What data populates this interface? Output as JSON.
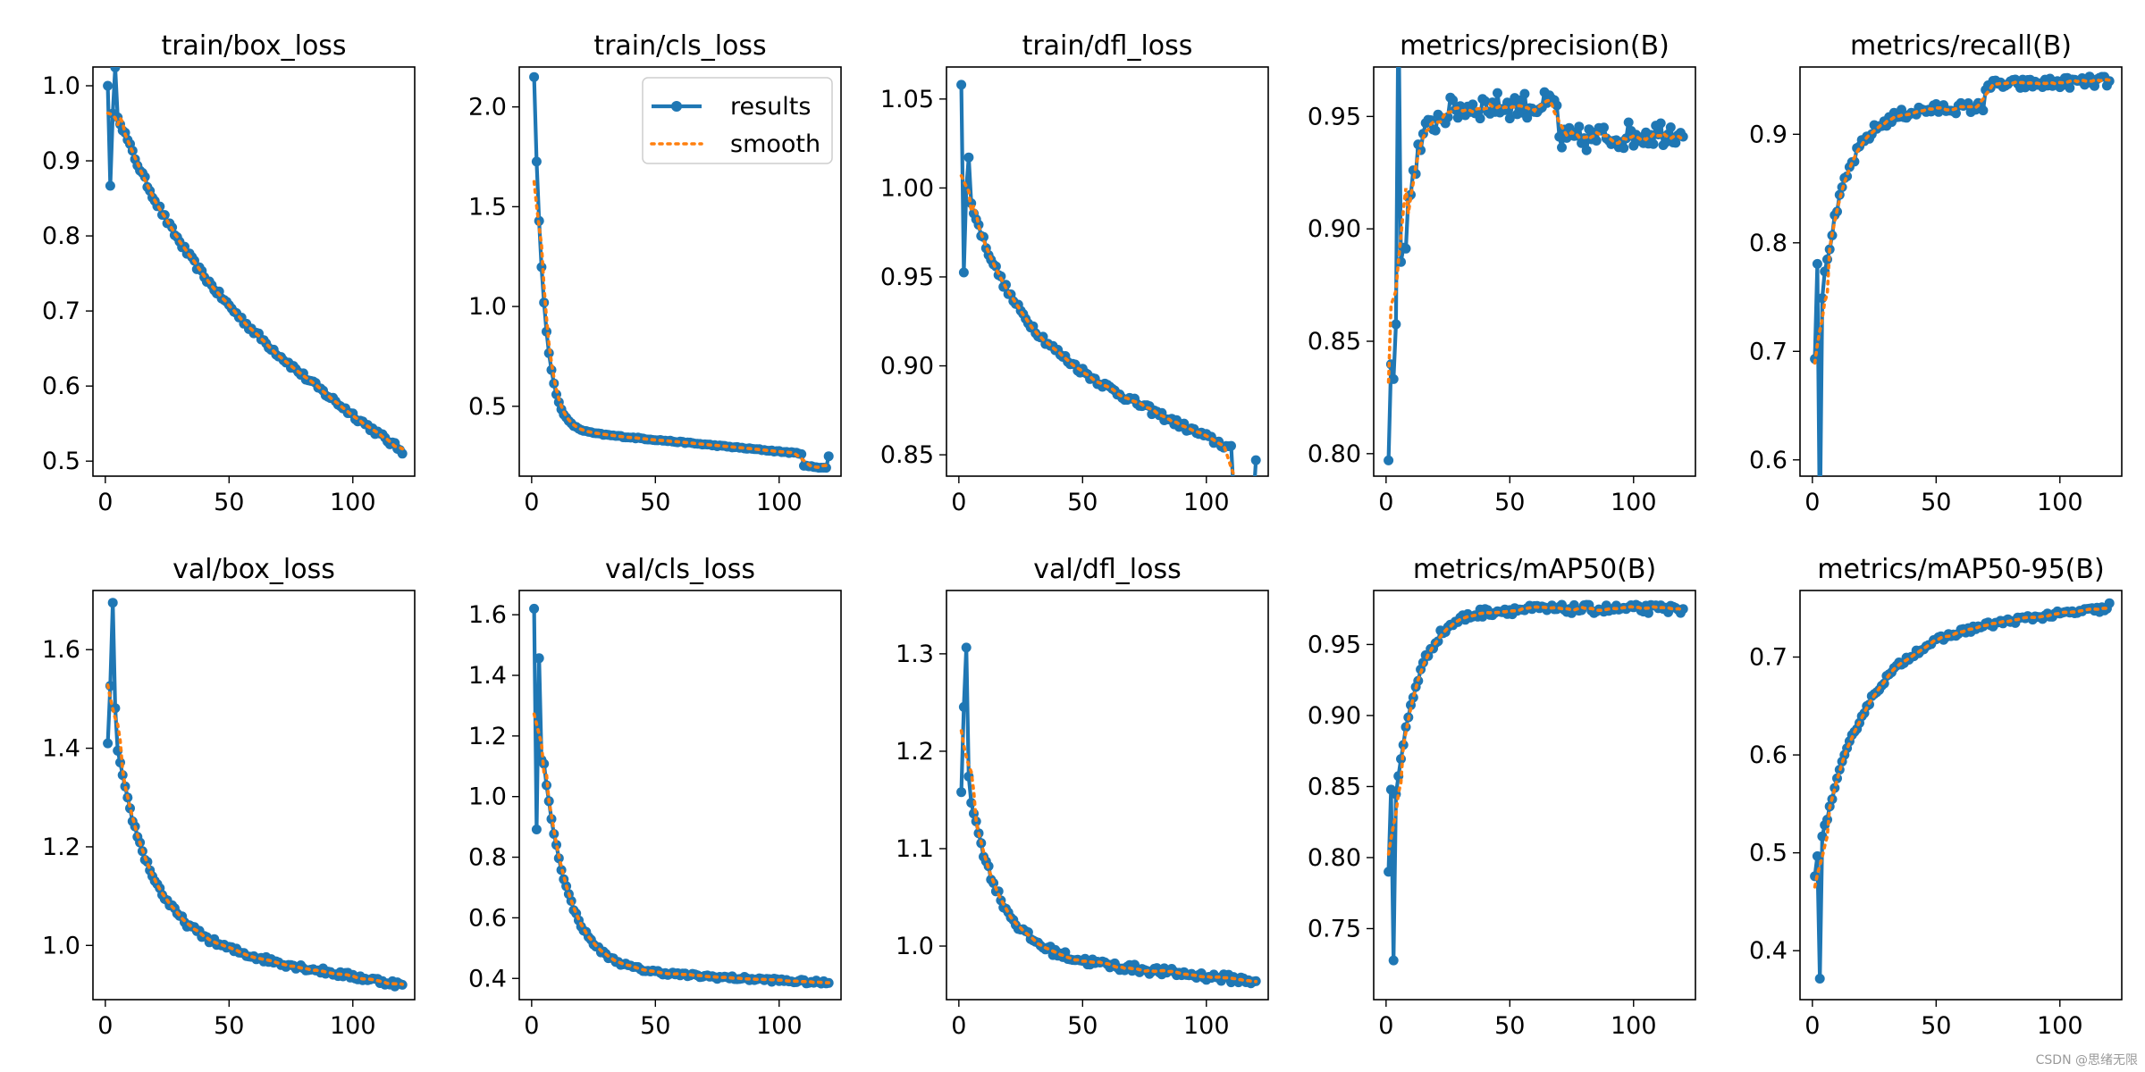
{
  "legend": {
    "results": "results",
    "smooth": "smooth",
    "panel": 1
  },
  "colors": {
    "results": "#1f77b4",
    "smooth": "#ff7f0e"
  },
  "watermark": "CSDN @思绪无限",
  "chart_data": [
    {
      "type": "line",
      "title": "train/box_loss",
      "xlim": [
        -5,
        125
      ],
      "ylim": [
        0.48,
        1.025
      ],
      "xticks": [
        0,
        50,
        100
      ],
      "yticks": [
        0.5,
        0.6,
        0.7,
        0.8,
        0.9,
        1.0
      ],
      "ytick_labels": [
        "0.5",
        "0.6",
        "0.7",
        "0.8",
        "0.9",
        "1.0"
      ],
      "series": [
        {
          "start": 1.0,
          "end": 0.51,
          "decay": 28,
          "amp": 0.22,
          "linear": 0.27,
          "spikes": [
            [
              2,
              -0.12
            ],
            [
              3,
              -0.02
            ],
            [
              4,
              0.05
            ]
          ],
          "noise": 0.004
        }
      ]
    },
    {
      "type": "line",
      "title": "train/cls_loss",
      "xlim": [
        -5,
        125
      ],
      "ylim": [
        0.15,
        2.2
      ],
      "xticks": [
        0,
        50,
        100
      ],
      "yticks": [
        0.5,
        1.0,
        1.5,
        2.0
      ],
      "ytick_labels": [
        "0.5",
        "1.0",
        "1.5",
        "2.0"
      ],
      "series": [
        {
          "start": 2.15,
          "end": 0.25,
          "decay": 4,
          "amp": 1.72,
          "linear": 0.14,
          "drop_at": 110,
          "drop": 0.06,
          "spikes": [],
          "noise": 0.003
        }
      ]
    },
    {
      "type": "line",
      "title": "train/dfl_loss",
      "xlim": [
        -5,
        125
      ],
      "ylim": [
        0.838,
        1.068
      ],
      "xticks": [
        0,
        50,
        100
      ],
      "yticks": [
        0.85,
        0.9,
        0.95,
        1.0,
        1.05
      ],
      "ytick_labels": [
        "0.85",
        "0.90",
        "0.95",
        "1.00",
        "1.05"
      ],
      "series": [
        {
          "start": 1.058,
          "end": 0.847,
          "decay": 18,
          "amp": 0.09,
          "linear": 0.075,
          "drop_at": 111,
          "drop": 0.025,
          "spikes": [
            [
              2,
              -0.055
            ],
            [
              4,
              0.02
            ]
          ],
          "noise": 0.002
        }
      ]
    },
    {
      "type": "line",
      "title": "metrics/precision(B)",
      "xlim": [
        -5,
        125
      ],
      "ylim": [
        0.79,
        0.972
      ],
      "xticks": [
        0,
        50,
        100
      ],
      "yticks": [
        0.8,
        0.85,
        0.9,
        0.95
      ],
      "ytick_labels": [
        "0.80",
        "0.85",
        "0.90",
        "0.95"
      ],
      "series": [
        {
          "start": 0.797,
          "end": 0.941,
          "rise": 6,
          "plateau": 0.955,
          "drop_at": 70,
          "drop_to": 0.939,
          "after_end": 0.944,
          "spikes": [
            [
              2,
              0.02
            ],
            [
              3,
              -0.01
            ],
            [
              5,
              0.13
            ],
            [
              8,
              -0.02
            ]
          ],
          "noise": 0.006
        }
      ]
    },
    {
      "type": "line",
      "title": "metrics/recall(B)",
      "xlim": [
        -5,
        125
      ],
      "ylim": [
        0.585,
        0.962
      ],
      "xticks": [
        0,
        50,
        100
      ],
      "yticks": [
        0.6,
        0.7,
        0.8,
        0.9
      ],
      "ytick_labels": [
        "0.6",
        "0.7",
        "0.8",
        "0.9"
      ],
      "series": [
        {
          "start": 0.693,
          "end": 0.949,
          "rise": 10,
          "plateau": 0.925,
          "drop_at": 70,
          "drop_to": 0.945,
          "after_end": 0.949,
          "spikes": [
            [
              2,
              0.07
            ],
            [
              3,
              -0.2
            ]
          ],
          "noise": 0.005
        }
      ]
    },
    {
      "type": "line",
      "title": "val/box_loss",
      "xlim": [
        -5,
        125
      ],
      "ylim": [
        0.89,
        1.72
      ],
      "xticks": [
        0,
        50,
        100
      ],
      "yticks": [
        1.0,
        1.2,
        1.4,
        1.6
      ],
      "ytick_labels": [
        "1.0",
        "1.2",
        "1.4",
        "1.6"
      ],
      "series": [
        {
          "start": 1.41,
          "end": 0.92,
          "decay": 14,
          "amp": 0.5,
          "linear": 0.1,
          "spikes": [
            [
              2,
              0.04
            ],
            [
              3,
              0.24
            ],
            [
              4,
              0.06
            ]
          ],
          "noise": 0.006
        }
      ]
    },
    {
      "type": "line",
      "title": "val/cls_loss",
      "xlim": [
        -5,
        125
      ],
      "ylim": [
        0.33,
        1.68
      ],
      "xticks": [
        0,
        50,
        100
      ],
      "yticks": [
        0.4,
        0.6,
        0.8,
        1.0,
        1.2,
        1.4,
        1.6
      ],
      "ytick_labels": [
        "0.4",
        "0.6",
        "0.8",
        "1.0",
        "1.2",
        "1.4",
        "1.6"
      ],
      "series": [
        {
          "start": 1.62,
          "end": 0.385,
          "decay": 10,
          "amp": 1.0,
          "linear": 0.05,
          "spikes": [
            [
              2,
              -0.45
            ],
            [
              3,
              0.2
            ],
            [
              4,
              -0.05
            ]
          ],
          "noise": 0.006
        }
      ]
    },
    {
      "type": "line",
      "title": "val/dfl_loss",
      "xlim": [
        -5,
        125
      ],
      "ylim": [
        0.945,
        1.365
      ],
      "xticks": [
        0,
        50,
        100
      ],
      "yticks": [
        1.0,
        1.1,
        1.2,
        1.3
      ],
      "ytick_labels": [
        "1.0",
        "1.1",
        "1.2",
        "1.3"
      ],
      "series": [
        {
          "start": 1.158,
          "end": 0.964,
          "decay": 12,
          "amp": 0.22,
          "linear": 0.03,
          "spikes": [
            [
              2,
              0.05
            ],
            [
              3,
              0.13
            ],
            [
              4,
              0.01
            ]
          ],
          "noise": 0.004
        }
      ]
    },
    {
      "type": "line",
      "title": "metrics/mAP50(B)",
      "xlim": [
        -5,
        125
      ],
      "ylim": [
        0.7,
        0.988
      ],
      "xticks": [
        0,
        50,
        100
      ],
      "yticks": [
        0.75,
        0.8,
        0.85,
        0.9,
        0.95
      ],
      "ytick_labels": [
        "0.75",
        "0.80",
        "0.85",
        "0.90",
        "0.95"
      ],
      "series": [
        {
          "start": 0.79,
          "end": 0.975,
          "rise": 9,
          "plateau": 0.975,
          "spikes": [
            [
              2,
              0.04
            ],
            [
              3,
              -0.1
            ]
          ],
          "noise": 0.003
        }
      ]
    },
    {
      "type": "line",
      "title": "metrics/mAP50-95(B)",
      "xlim": [
        -5,
        125
      ],
      "ylim": [
        0.35,
        0.768
      ],
      "xticks": [
        0,
        50,
        100
      ],
      "yticks": [
        0.4,
        0.5,
        0.6,
        0.7
      ],
      "ytick_labels": [
        "0.4",
        "0.5",
        "0.6",
        "0.7"
      ],
      "series": [
        {
          "start": 0.476,
          "end": 0.755,
          "rise": 18,
          "plateau": 0.72,
          "linear": 0.03,
          "spikes": [
            [
              2,
              0.01
            ],
            [
              3,
              -0.13
            ]
          ],
          "noise": 0.003
        }
      ]
    }
  ]
}
